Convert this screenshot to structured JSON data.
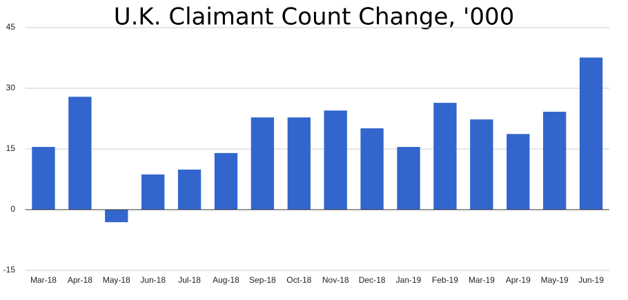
{
  "chart_data": {
    "type": "bar",
    "title": "U.K. Claimant Count Change, '000",
    "categories": [
      "Mar-18",
      "Apr-18",
      "May-18",
      "Jun-18",
      "Jul-18",
      "Aug-18",
      "Sep-18",
      "Oct-18",
      "Nov-18",
      "Dec-18",
      "Jan-19",
      "Feb-19",
      "Mar-19",
      "Apr-19",
      "May-19",
      "Jun-19"
    ],
    "values": [
      15.5,
      27.9,
      -3.1,
      8.7,
      9.9,
      14.0,
      22.8,
      22.8,
      24.5,
      20.1,
      15.5,
      26.4,
      22.3,
      18.7,
      24.2,
      37.6
    ],
    "color": "#3366cc",
    "ylim": [
      -15,
      45
    ],
    "yticks": [
      -15,
      0,
      15,
      30,
      45
    ],
    "grid": true
  }
}
